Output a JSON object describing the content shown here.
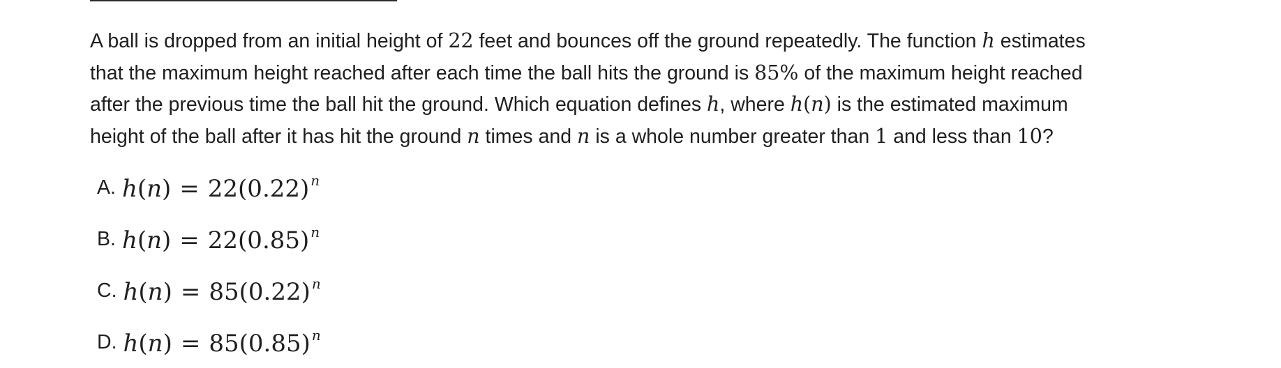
{
  "question": {
    "line1": {
      "t1": "A ball is dropped from an initial height of ",
      "m1": "22",
      "t2": " feet and bounces off the ground repeatedly. The function ",
      "m2": "h",
      "t3": " estimates"
    },
    "line2": {
      "t1": "that the maximum height reached after each time the ball hits the ground is ",
      "m1": "85%",
      "t2": " of the maximum height reached"
    },
    "line3": {
      "t1": "after the previous time the ball hit the ground. Which equation defines ",
      "m1": "h",
      "t2": ", where ",
      "m2": "h",
      "m3": "(",
      "m4": "n",
      "m5": ")",
      "t3": " is the estimated maximum"
    },
    "line4": {
      "t1": "height of the ball after it has hit the ground ",
      "m1": "n",
      "t2": " times and ",
      "m2": "n",
      "t3": " is a whole number greater than ",
      "m3": "1",
      "t4": " and less than ",
      "m4": "10",
      "t5": "?"
    }
  },
  "choices": [
    {
      "label": "A.",
      "func": "h",
      "paren_open": "(",
      "var": "n",
      "paren_close": ")",
      "equals": "=",
      "coef": "22",
      "base": "(0.22)",
      "exp": "n"
    },
    {
      "label": "B.",
      "func": "h",
      "paren_open": "(",
      "var": "n",
      "paren_close": ")",
      "equals": "=",
      "coef": "22",
      "base": "(0.85)",
      "exp": "n"
    },
    {
      "label": "C.",
      "func": "h",
      "paren_open": "(",
      "var": "n",
      "paren_close": ")",
      "equals": "=",
      "coef": "85",
      "base": "(0.22)",
      "exp": "n"
    },
    {
      "label": "D.",
      "func": "h",
      "paren_open": "(",
      "var": "n",
      "paren_close": ")",
      "equals": "=",
      "coef": "85",
      "base": "(0.85)",
      "exp": "n"
    }
  ]
}
